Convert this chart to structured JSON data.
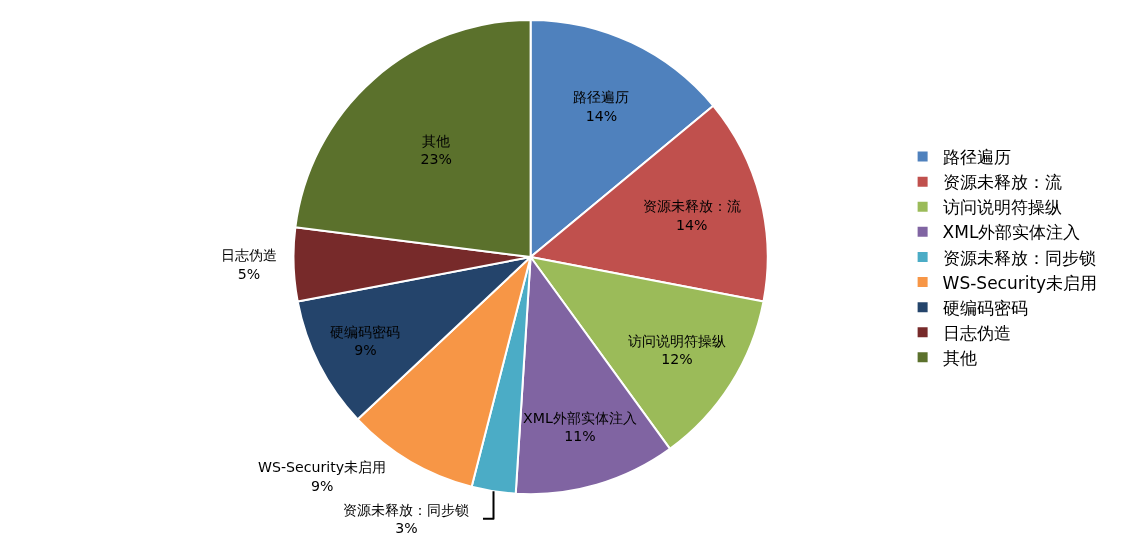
{
  "chart_data": {
    "type": "pie",
    "categories": [
      "路径遍历",
      "资源未释放：流",
      "访问说明符操纵",
      "XML外部实体注入",
      "资源未释放：同步锁",
      "WS-Security未启用",
      "硬编码密码",
      "日志伪造",
      "其他"
    ],
    "values": [
      14,
      14,
      12,
      11,
      3,
      9,
      9,
      5,
      23
    ],
    "value_labels": [
      "14%",
      "14%",
      "12%",
      "11%",
      "3%",
      "9%",
      "9%",
      "5%",
      "23%"
    ],
    "colors": [
      "#4f81bd",
      "#c0504d",
      "#9bbb59",
      "#8064a2",
      "#4bacc6",
      "#f79646",
      "#24446b",
      "#772a2a",
      "#5b712c"
    ],
    "legend": "right"
  }
}
